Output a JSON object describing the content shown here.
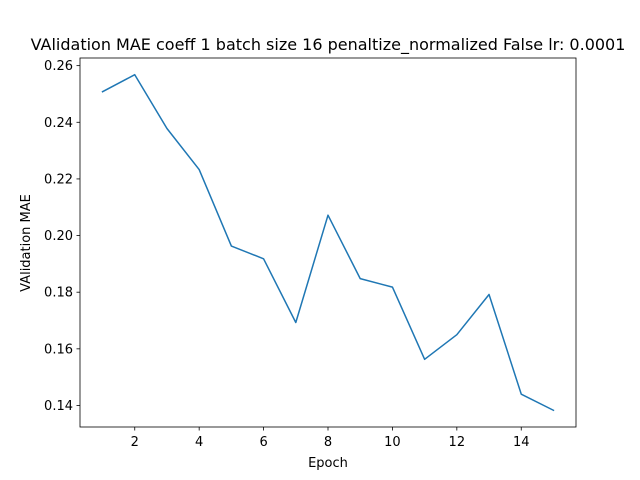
{
  "chart_data": {
    "type": "line",
    "title": "VAlidation MAE coeff 1 batch size 16 penaltize_normalized False lr: 0.0001",
    "xlabel": "Epoch",
    "ylabel": "VAlidation MAE",
    "x": [
      1,
      2,
      3,
      4,
      5,
      6,
      7,
      8,
      9,
      10,
      11,
      12,
      13,
      14,
      15
    ],
    "series": [
      {
        "values": [
          0.2508,
          0.2568,
          0.2378,
          0.2233,
          0.1963,
          0.1918,
          0.1693,
          0.2072,
          0.1848,
          0.1818,
          0.1563,
          0.165,
          0.1792,
          0.144,
          0.1383
        ],
        "color": "#1f77b4"
      }
    ],
    "xlim": [
      0.3,
      15.7
    ],
    "ylim": [
      0.1324,
      0.2627
    ],
    "xticks": [
      2,
      4,
      6,
      8,
      10,
      12,
      14
    ],
    "xtick_labels": [
      "2",
      "4",
      "6",
      "8",
      "10",
      "12",
      "14"
    ],
    "yticks": [
      0.14,
      0.16,
      0.18,
      0.2,
      0.22,
      0.24,
      0.26
    ],
    "ytick_labels": [
      "0.14",
      "0.16",
      "0.18",
      "0.20",
      "0.22",
      "0.24",
      "0.26"
    ],
    "grid": false,
    "legend": "none"
  }
}
